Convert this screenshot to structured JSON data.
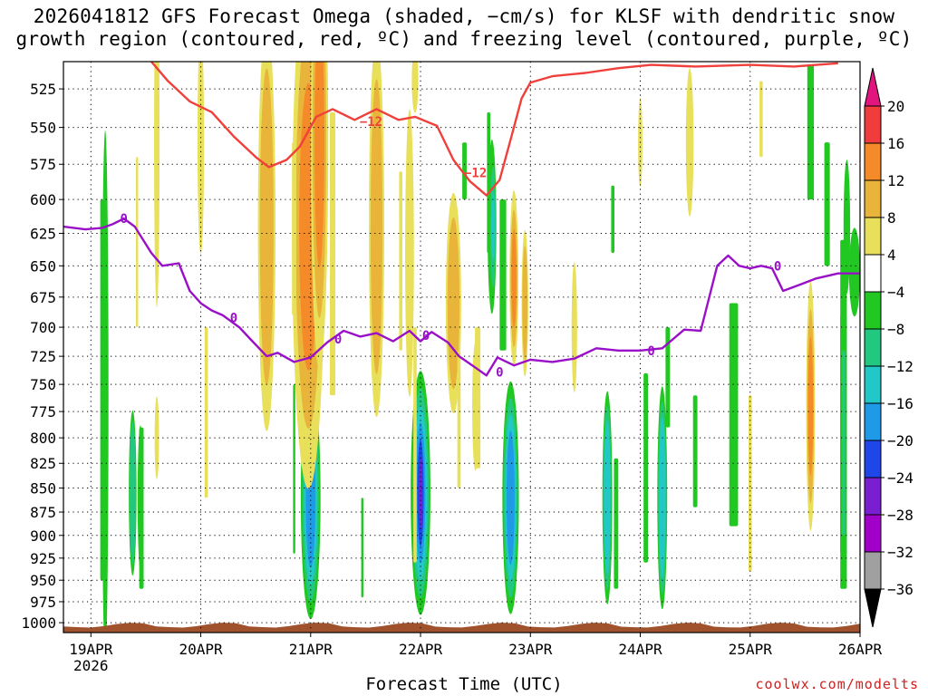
{
  "chart_data": {
    "type": "heatmap",
    "title_line1": "2026041812 GFS Forecast Omega (shaded, −cm/s) for KLSF with dendritic snow",
    "title_line2": "growth region (contoured, red, ºC) and freezing level (contoured, purple, ºC)",
    "xlabel": "Forecast Time (UTC)",
    "ylabel": "",
    "credit": "coolwx.com/modelts",
    "x_ticks": [
      "19APR",
      "20APR",
      "21APR",
      "22APR",
      "23APR",
      "24APR",
      "25APR",
      "26APR"
    ],
    "x_year": "2026",
    "x_range_days": [
      -0.25,
      7.0
    ],
    "y_ticks": [
      525,
      550,
      575,
      600,
      625,
      650,
      675,
      700,
      725,
      750,
      775,
      800,
      825,
      850,
      875,
      900,
      925,
      950,
      975,
      1000
    ],
    "y_range_hpa": [
      508,
      1012
    ],
    "colorbar": {
      "levels": [
        "20",
        "16",
        "12",
        "8",
        "4",
        "−4",
        "−8",
        "−12",
        "−16",
        "−20",
        "−24",
        "−28",
        "−32",
        "−36"
      ],
      "colors": [
        "#e2147d",
        "#f03c3c",
        "#f58a28",
        "#e8b43a",
        "#e8e05a",
        "#ffffff",
        "#22c822",
        "#22c880",
        "#22c8c8",
        "#1e9ae8",
        "#1e46e8",
        "#7a1ed2",
        "#a000c8",
        "#a0a0a0",
        "#000000"
      ]
    },
    "dgz_contour": {
      "label": "−12",
      "color": "#f0403c",
      "x": [
        0.55,
        0.7,
        0.9,
        1.1,
        1.3,
        1.5,
        1.62,
        1.78,
        1.9,
        2.05,
        2.2,
        2.4,
        2.6,
        2.8,
        2.95,
        3.15,
        3.3,
        3.45,
        3.6,
        3.72,
        3.82,
        3.92,
        4.0,
        4.2,
        4.5,
        4.8,
        5.1,
        5.5,
        6.0,
        6.4,
        6.8
      ],
      "p": [
        508,
        520,
        533,
        540,
        556,
        570,
        577,
        572,
        563,
        543,
        538,
        545,
        538,
        545,
        543,
        549,
        572,
        587,
        597,
        586,
        558,
        531,
        521,
        517,
        515,
        512,
        510,
        511,
        510,
        511,
        509
      ]
    },
    "freezing_contour": {
      "label": "0",
      "color": "#9a10c8",
      "x": [
        -0.25,
        -0.05,
        0.1,
        0.2,
        0.3,
        0.4,
        0.55,
        0.65,
        0.8,
        0.9,
        1.0,
        1.1,
        1.2,
        1.35,
        1.45,
        1.6,
        1.7,
        1.85,
        2.0,
        2.15,
        2.3,
        2.45,
        2.6,
        2.75,
        2.9,
        3.0,
        3.1,
        3.25,
        3.35,
        3.5,
        3.6,
        3.7,
        3.85,
        4.0,
        4.2,
        4.4,
        4.6,
        4.8,
        5.0,
        5.2,
        5.4,
        5.55,
        5.7,
        5.8,
        5.9,
        6.0,
        6.1,
        6.2,
        6.3,
        6.45,
        6.6,
        6.8,
        7.0
      ],
      "p": [
        620,
        622,
        621,
        618,
        614,
        620,
        640,
        650,
        648,
        670,
        680,
        686,
        690,
        700,
        710,
        725,
        722,
        730,
        726,
        713,
        703,
        708,
        705,
        712,
        703,
        712,
        704,
        713,
        725,
        735,
        742,
        726,
        733,
        728,
        730,
        727,
        718,
        720,
        720,
        718,
        702,
        703,
        650,
        642,
        650,
        652,
        650,
        652,
        670,
        665,
        660,
        656,
        656
      ]
    },
    "surface_pressure_hpa": 1003
  }
}
